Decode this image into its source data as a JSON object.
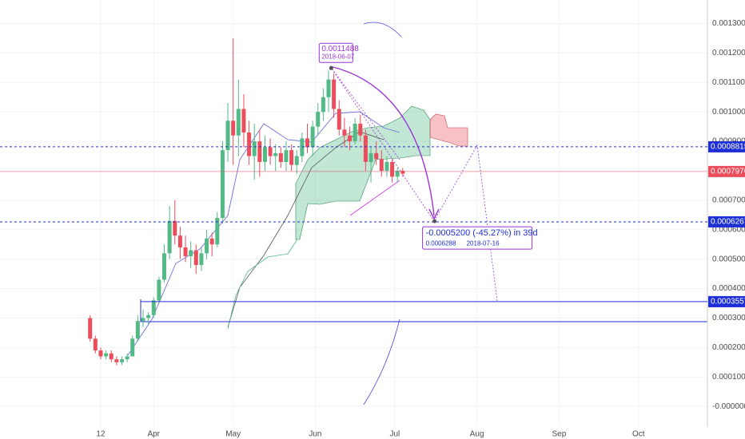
{
  "chart_data": {
    "type": "candlestick",
    "x": [
      "2018-03-08",
      "2018-03-10",
      "2018-03-12",
      "2018-03-14",
      "2018-03-16",
      "2018-03-18",
      "2018-03-20",
      "2018-03-22",
      "2018-03-24",
      "2018-03-26",
      "2018-03-28",
      "2018-03-30",
      "2018-04-01",
      "2018-04-03",
      "2018-04-05",
      "2018-04-07",
      "2018-04-09",
      "2018-04-11",
      "2018-04-13",
      "2018-04-15",
      "2018-04-17",
      "2018-04-19",
      "2018-04-21",
      "2018-04-23",
      "2018-04-25",
      "2018-04-27",
      "2018-04-29",
      "2018-05-01",
      "2018-05-03",
      "2018-05-05",
      "2018-05-07",
      "2018-05-09",
      "2018-05-11",
      "2018-05-13",
      "2018-05-15",
      "2018-05-17",
      "2018-05-19",
      "2018-05-21",
      "2018-05-23",
      "2018-05-25",
      "2018-05-27",
      "2018-05-29",
      "2018-05-31",
      "2018-06-02",
      "2018-06-04",
      "2018-06-06",
      "2018-06-08",
      "2018-06-10",
      "2018-06-12",
      "2018-06-14",
      "2018-06-16",
      "2018-06-18",
      "2018-06-20",
      "2018-06-22",
      "2018-06-24",
      "2018-06-26",
      "2018-06-28",
      "2018-06-30",
      "2018-07-02",
      "2018-07-04"
    ],
    "open": [
      0.0003,
      0.00023,
      0.00019,
      0.00017,
      0.00018,
      0.00016,
      0.00015,
      0.00016,
      0.00017,
      0.00023,
      0.00029,
      0.0003,
      0.00031,
      0.00036,
      0.00043,
      0.00052,
      0.00063,
      0.00058,
      0.00054,
      0.00051,
      0.00053,
      0.00048,
      0.00052,
      0.00057,
      0.00055,
      0.00064,
      0.00087,
      0.00097,
      0.00092,
      0.00101,
      0.00093,
      0.00085,
      0.0009,
      0.00083,
      0.00088,
      0.00085,
      0.00086,
      0.00083,
      0.00087,
      0.00082,
      0.00085,
      0.00091,
      0.00088,
      0.00095,
      0.001,
      0.00105,
      0.00111,
      0.00101,
      0.00094,
      0.00092,
      0.0009,
      0.00096,
      0.00092,
      0.00083,
      0.00086,
      0.00084,
      0.0008,
      0.00083,
      0.00078,
      0.0008
    ],
    "high": [
      0.00031,
      0.00024,
      0.0002,
      0.00019,
      0.00019,
      0.00017,
      0.00017,
      0.00018,
      0.00024,
      0.00031,
      0.00033,
      0.00032,
      0.00037,
      0.00044,
      0.00055,
      0.00068,
      0.0007,
      0.00061,
      0.00058,
      0.00056,
      0.00055,
      0.00054,
      0.0006,
      0.00059,
      0.00066,
      0.0009,
      0.00103,
      0.00125,
      0.00111,
      0.00106,
      0.00097,
      0.00096,
      0.00094,
      0.00092,
      0.00091,
      0.00089,
      0.00088,
      0.0009,
      0.00089,
      0.00087,
      0.00093,
      0.00096,
      0.00097,
      0.00103,
      0.00108,
      0.00114,
      0.00113,
      0.00104,
      0.00098,
      0.00095,
      0.00098,
      0.00099,
      0.00094,
      0.00088,
      0.0009,
      0.00087,
      0.00085,
      0.00084,
      0.00081,
      0.00081
    ],
    "low": [
      0.00022,
      0.00018,
      0.00016,
      0.00016,
      0.00015,
      0.00014,
      0.00014,
      0.00015,
      0.00017,
      0.00022,
      0.00027,
      0.00028,
      0.0003,
      0.00035,
      0.00042,
      0.0005,
      0.00055,
      0.0005,
      0.00049,
      0.00047,
      0.00045,
      0.00046,
      0.0005,
      0.00051,
      0.00054,
      0.00062,
      0.00083,
      0.00082,
      0.00085,
      0.00088,
      0.00082,
      0.00077,
      0.00078,
      0.0008,
      0.00082,
      0.0008,
      0.00081,
      0.0008,
      0.0008,
      0.00079,
      0.00083,
      0.00086,
      0.00085,
      0.00092,
      0.00097,
      0.001,
      0.00098,
      0.00092,
      0.00088,
      0.00087,
      0.00089,
      0.0009,
      0.0008,
      0.00076,
      0.00082,
      0.00078,
      0.00078,
      0.00076,
      0.00076,
      0.00078
    ],
    "close": [
      0.00023,
      0.00019,
      0.00017,
      0.00018,
      0.00016,
      0.00015,
      0.00016,
      0.00017,
      0.00023,
      0.00029,
      0.0003,
      0.00031,
      0.00036,
      0.00043,
      0.00052,
      0.00063,
      0.00058,
      0.00054,
      0.00051,
      0.00053,
      0.00048,
      0.00052,
      0.00057,
      0.00055,
      0.00064,
      0.00087,
      0.00097,
      0.00092,
      0.00101,
      0.00093,
      0.00085,
      0.0009,
      0.00083,
      0.00088,
      0.00085,
      0.00086,
      0.00083,
      0.00087,
      0.00082,
      0.00085,
      0.00091,
      0.00088,
      0.00095,
      0.001,
      0.00105,
      0.00111,
      0.00101,
      0.00094,
      0.00092,
      0.0009,
      0.00096,
      0.00092,
      0.00083,
      0.00086,
      0.00084,
      0.0008,
      0.00083,
      0.00078,
      0.0008,
      0.00079
    ],
    "up_color": "#53b987",
    "down_color": "#eb4d5c",
    "xlim": [
      "2018-02-02",
      "2018-10-27"
    ],
    "xticks": [
      {
        "value": "2018-03-12",
        "label": "12"
      },
      {
        "value": "2018-04-01",
        "label": "Apr"
      },
      {
        "value": "2018-05-01",
        "label": "May"
      },
      {
        "value": "2018-06-01",
        "label": "Jun"
      },
      {
        "value": "2018-07-01",
        "label": "Jul"
      },
      {
        "value": "2018-08-01",
        "label": "Aug"
      },
      {
        "value": "2018-09-01",
        "label": "Sep"
      },
      {
        "value": "2018-10-01",
        "label": "Oct"
      }
    ],
    "ylim": [
      -7e-05,
      0.00138
    ],
    "yticks": [
      {
        "value": 0.0013,
        "label": "0.0013000"
      },
      {
        "value": 0.0012,
        "label": "0.0012000"
      },
      {
        "value": 0.0011,
        "label": "0.0011000"
      },
      {
        "value": 0.001,
        "label": "0.0010000"
      },
      {
        "value": 0.0009,
        "label": "0.0009000"
      },
      {
        "value": 0.0008,
        "label": "0.0008000"
      },
      {
        "value": 0.0007,
        "label": "0.0007000"
      },
      {
        "value": 0.0006,
        "label": "0.0006000"
      },
      {
        "value": 0.0005,
        "label": "0.0005000"
      },
      {
        "value": 0.0004,
        "label": "0.0004000"
      },
      {
        "value": 0.0003,
        "label": "0.0003000"
      },
      {
        "value": 0.0002,
        "label": "0.0002000"
      },
      {
        "value": 0.0001,
        "label": "0.0001000"
      },
      {
        "value": 0,
        "label": "-0.0000000"
      }
    ],
    "price_lines": [
      {
        "value": 0.0008815,
        "color": "#1e2fd6",
        "style": "dashed"
      },
      {
        "value": 0.0007976,
        "color": "#eb4d5c",
        "style": "solid"
      },
      {
        "value": 0.0006267,
        "color": "#1e2fd6",
        "style": "dashed"
      },
      {
        "value": 0.0003557,
        "color": "#1e2fd6",
        "style": "solid"
      }
    ],
    "peak": {
      "value": 0.0011488,
      "date": "2018-06-07"
    },
    "measure": {
      "text": "-0.0005200 (-45.27%) in 39d",
      "value": 0.0006288,
      "date": "2018-07-16"
    }
  }
}
